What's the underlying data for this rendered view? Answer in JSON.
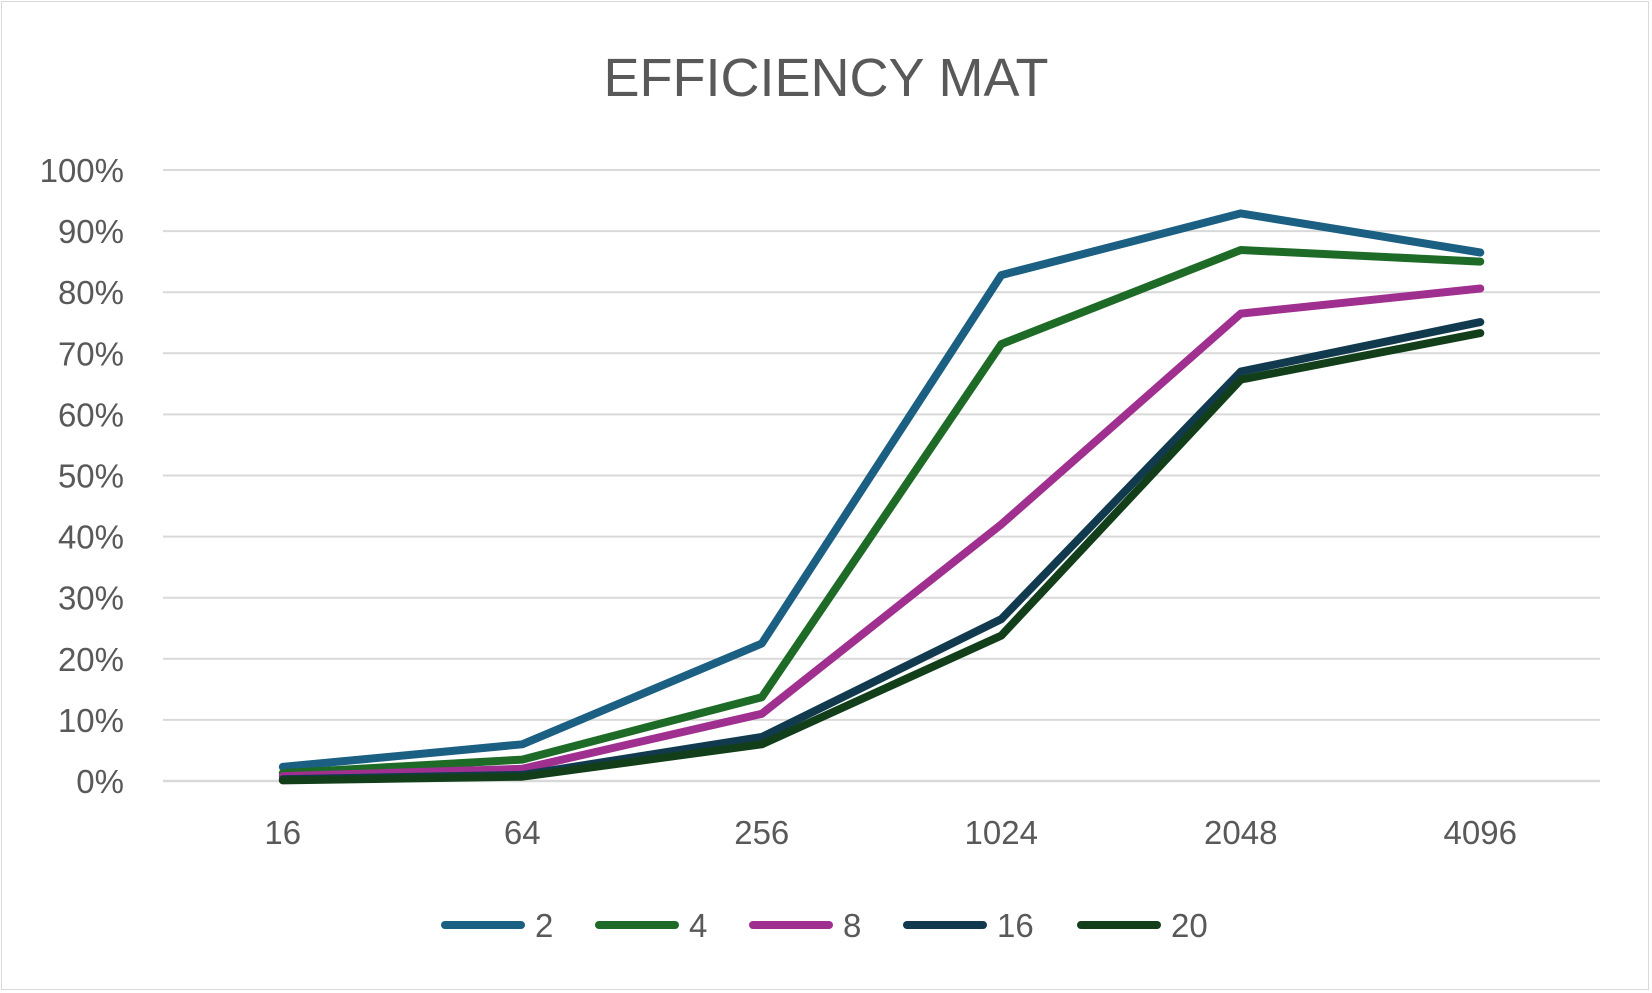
{
  "chart_data": {
    "type": "line",
    "title": "EFFICIENCY MAT",
    "xlabel": "",
    "ylabel": "",
    "categories": [
      "16",
      "64",
      "256",
      "1024",
      "2048",
      "4096"
    ],
    "y_ticks": [
      "0%",
      "10%",
      "20%",
      "30%",
      "40%",
      "50%",
      "60%",
      "70%",
      "80%",
      "90%",
      "100%"
    ],
    "ylim": [
      0,
      100
    ],
    "grid": true,
    "legend_position": "bottom",
    "series": [
      {
        "name": "2",
        "color": "#1b5f82",
        "values": [
          2.3,
          6.0,
          22.5,
          82.8,
          92.9,
          86.5
        ]
      },
      {
        "name": "4",
        "color": "#1e6b27",
        "values": [
          1.3,
          3.5,
          13.7,
          71.5,
          86.9,
          85.0
        ]
      },
      {
        "name": "8",
        "color": "#a0308f",
        "values": [
          0.8,
          2.0,
          11.0,
          42.0,
          76.5,
          80.6
        ]
      },
      {
        "name": "16",
        "color": "#123a4f",
        "values": [
          0.3,
          1.0,
          7.2,
          26.5,
          67.0,
          75.1
        ]
      },
      {
        "name": "20",
        "color": "#123f1a",
        "values": [
          0.1,
          0.7,
          6.0,
          23.8,
          65.7,
          73.3
        ]
      }
    ]
  }
}
